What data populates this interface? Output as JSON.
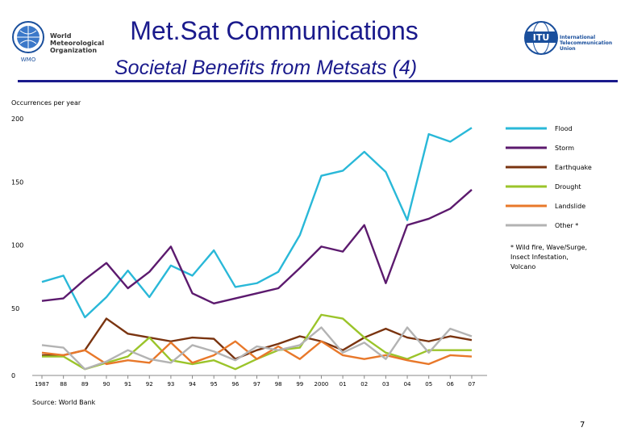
{
  "header": {
    "title": "Met.Sat Communications",
    "subtitle": "Societal Benefits from Metsats (4)",
    "wmo_name": [
      "World",
      "Meteorological",
      "Organization"
    ],
    "wmo_abbrev": "WMO",
    "itu_abbrev": "ITU",
    "itu_name": [
      "International",
      "Telecommunication",
      "Union"
    ]
  },
  "colors": {
    "title": "#1a1a8c",
    "flood": "#29b8d8",
    "storm": "#5c1a6e",
    "earthquake": "#7a3410",
    "drought": "#9bc42a",
    "landslide": "#e8782a",
    "other": "#b3b3b3"
  },
  "chart_data": {
    "type": "line",
    "ylabel": "Occurrences per year",
    "ylim": [
      0,
      200
    ],
    "yticks": [
      0,
      50,
      100,
      150,
      200
    ],
    "categories": [
      "1987",
      "88",
      "89",
      "90",
      "91",
      "92",
      "93",
      "94",
      "95",
      "96",
      "97",
      "98",
      "99",
      "2000",
      "01",
      "02",
      "03",
      "04",
      "05",
      "06",
      "07"
    ],
    "series": [
      {
        "name": "Flood",
        "key": "flood",
        "values": [
          74,
          79,
          46,
          62,
          83,
          62,
          87,
          79,
          99,
          70,
          73,
          82,
          111,
          158,
          162,
          177,
          161,
          123,
          191,
          185,
          196
        ]
      },
      {
        "name": "Storm",
        "key": "storm",
        "values": [
          59,
          61,
          76,
          89,
          69,
          82,
          102,
          65,
          57,
          61,
          65,
          69,
          85,
          102,
          98,
          119,
          73,
          119,
          124,
          132,
          147
        ]
      },
      {
        "name": "Earthquake",
        "key": "earthquake",
        "values": [
          16,
          16,
          20,
          45,
          33,
          30,
          27,
          30,
          29,
          13,
          20,
          25,
          31,
          27,
          20,
          30,
          37,
          30,
          27,
          31,
          28
        ]
      },
      {
        "name": "Drought",
        "key": "drought",
        "values": [
          15,
          15,
          5,
          10,
          15,
          30,
          12,
          9,
          12,
          5,
          13,
          20,
          22,
          48,
          45,
          30,
          18,
          13,
          20,
          20,
          20
        ]
      },
      {
        "name": "Landslide",
        "key": "landslide",
        "values": [
          18,
          16,
          20,
          9,
          12,
          10,
          26,
          10,
          16,
          27,
          13,
          23,
          13,
          27,
          16,
          13,
          16,
          12,
          9,
          16,
          15
        ]
      },
      {
        "name": "Other *",
        "key": "other",
        "values": [
          24,
          22,
          5,
          11,
          20,
          13,
          10,
          24,
          19,
          12,
          23,
          20,
          24,
          38,
          18,
          26,
          13,
          38,
          18,
          37,
          31
        ]
      }
    ],
    "footnote": "* Wild fire, Wave/Surge, Insect Infestation, Volcano",
    "source": "Source: World Bank",
    "legend_position": "right",
    "grid": false
  },
  "footer": {
    "page_number": "7"
  }
}
